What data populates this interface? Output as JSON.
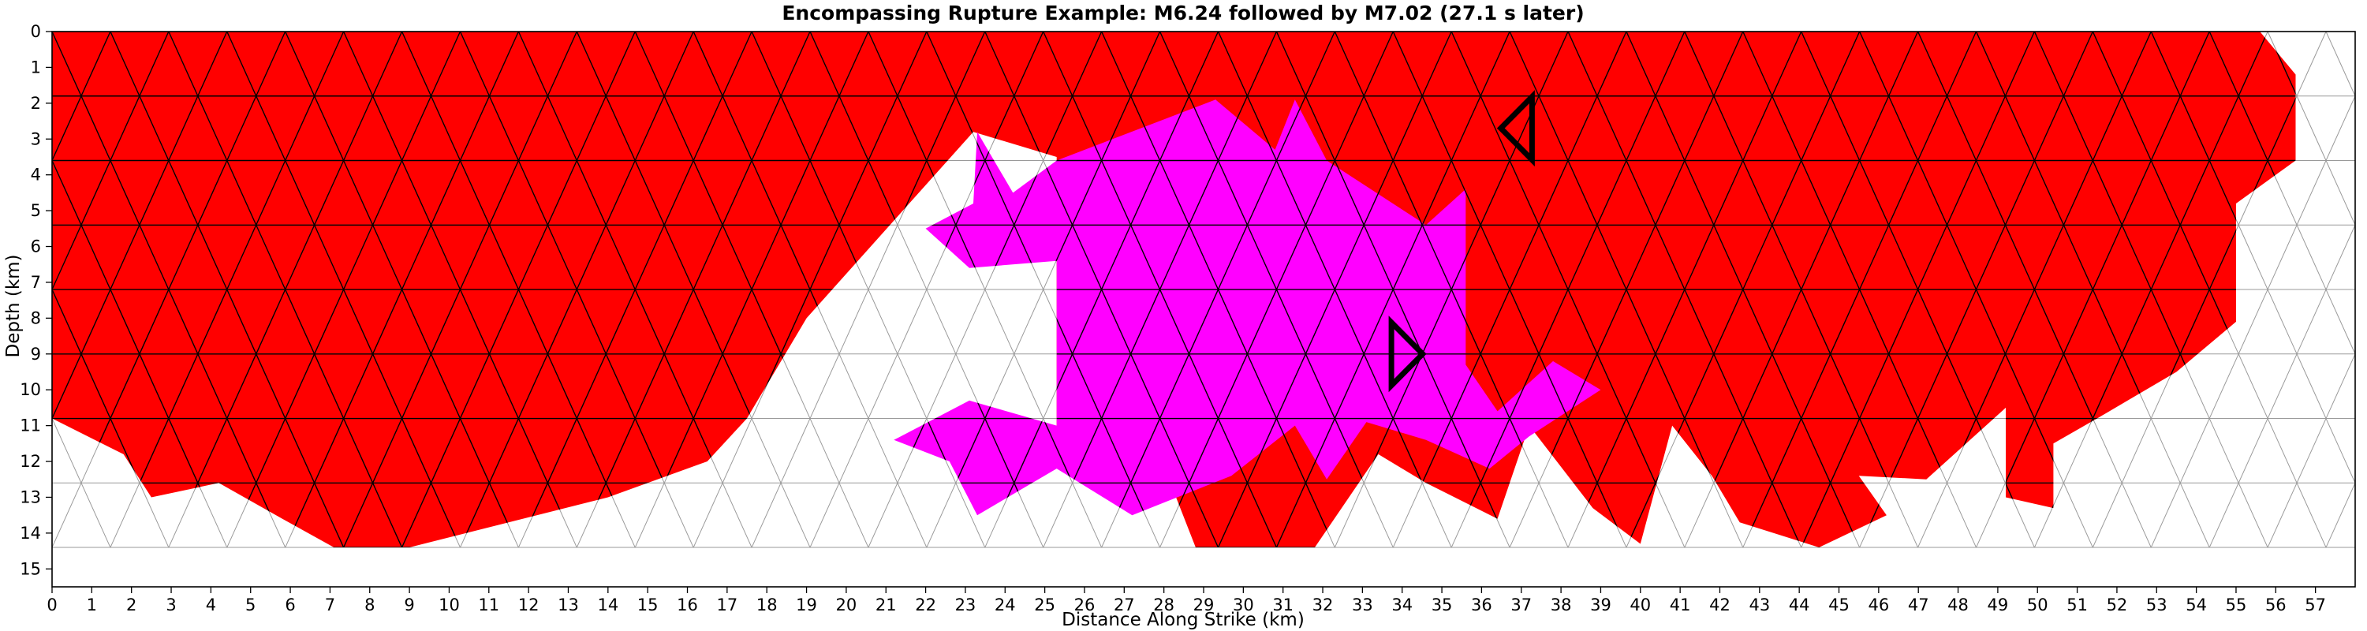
{
  "chart_data": {
    "type": "heatmap",
    "title": "Encompassing Rupture Example: M6.24 followed by M7.02 (27.1 s later)",
    "xlabel": "Distance Along Strike (km)",
    "ylabel": "Depth (km)",
    "xlim": [
      0,
      58
    ],
    "ylim": [
      15.5,
      0
    ],
    "x_ticks": [
      "0",
      "1",
      "2",
      "3",
      "4",
      "5",
      "6",
      "7",
      "8",
      "9",
      "10",
      "11",
      "12",
      "13",
      "14",
      "15",
      "16",
      "17",
      "18",
      "19",
      "20",
      "21",
      "22",
      "23",
      "24",
      "25",
      "26",
      "27",
      "28",
      "29",
      "30",
      "31",
      "32",
      "33",
      "34",
      "35",
      "36",
      "37",
      "38",
      "39",
      "40",
      "41",
      "42",
      "43",
      "44",
      "45",
      "46",
      "47",
      "48",
      "49",
      "50",
      "51",
      "52",
      "53",
      "54",
      "55",
      "56",
      "57"
    ],
    "y_ticks": [
      "0",
      "1",
      "2",
      "3",
      "4",
      "5",
      "6",
      "7",
      "8",
      "9",
      "10",
      "11",
      "12",
      "13",
      "14",
      "15"
    ],
    "mesh": {
      "columns": 40,
      "rows": 8,
      "row_height_km": 1.8,
      "max_depth_km": 14.4
    },
    "colors": {
      "first_rupture": "#ff0000",
      "second_rupture": "#ff00ff",
      "unruptured": "#ffffff",
      "element_edges_ruptured": "#000000",
      "element_edges_unruptured": "#9a9a9a",
      "hypocenter_markers": "#000000"
    },
    "series": [
      {
        "color": "#ff0000",
        "polygon": [
          [
            0,
            0
          ],
          [
            55.6,
            0
          ],
          [
            56.5,
            1.2
          ],
          [
            56.5,
            3.6
          ],
          [
            55,
            4.8
          ],
          [
            55,
            8.1
          ],
          [
            53.5,
            9.5
          ],
          [
            51.5,
            10.8
          ],
          [
            50.4,
            11.5
          ],
          [
            50.4,
            13.3
          ],
          [
            49.2,
            13
          ],
          [
            49.2,
            10.5
          ],
          [
            47.2,
            12.5
          ],
          [
            45.5,
            12.4
          ],
          [
            46.2,
            13.5
          ],
          [
            44.5,
            14.4
          ],
          [
            42.5,
            13.7
          ],
          [
            41.8,
            12.4
          ],
          [
            40.8,
            11
          ],
          [
            40,
            14.3
          ],
          [
            38.8,
            13.3
          ],
          [
            37.2,
            11
          ],
          [
            36.4,
            13.6
          ],
          [
            34.6,
            12.6
          ],
          [
            33.4,
            11.8
          ],
          [
            31.8,
            14.4
          ],
          [
            28.8,
            14.4
          ],
          [
            28.2,
            12.7
          ],
          [
            27.8,
            11.5
          ],
          [
            27.2,
            10.8
          ],
          [
            25.3,
            11
          ],
          [
            25.3,
            3.5
          ],
          [
            23.2,
            2.8
          ],
          [
            19,
            8
          ],
          [
            17.5,
            10.8
          ],
          [
            16.5,
            12
          ],
          [
            14,
            13
          ],
          [
            9,
            14.4
          ],
          [
            7.1,
            14.4
          ],
          [
            5.8,
            13.6
          ],
          [
            4.2,
            12.6
          ],
          [
            2.5,
            13
          ],
          [
            1.8,
            11.8
          ],
          [
            0,
            10.8
          ],
          [
            0,
            3.6
          ],
          [
            1.8,
            2.7
          ],
          [
            3.9,
            1.9
          ],
          [
            5.8,
            2.8
          ],
          [
            5.8,
            9.9
          ],
          [
            3.9,
            10.8
          ],
          [
            2,
            9
          ],
          [
            2,
            7.2
          ],
          [
            0,
            7.2
          ],
          [
            0,
            0
          ]
        ]
      },
      {
        "color": "#ff00ff",
        "polygon": [
          [
            23.3,
            2.8
          ],
          [
            24.2,
            4.5
          ],
          [
            25.3,
            3.6
          ],
          [
            29.3,
            1.9
          ],
          [
            30.8,
            3.3
          ],
          [
            31.3,
            1.9
          ],
          [
            32.1,
            3.6
          ],
          [
            34.6,
            5.4
          ],
          [
            35.6,
            4.4
          ],
          [
            35.6,
            8.3
          ],
          [
            35.6,
            9.3
          ],
          [
            36.4,
            10.6
          ],
          [
            37.8,
            9.2
          ],
          [
            39,
            10
          ],
          [
            37.2,
            11.3
          ],
          [
            36.2,
            12.2
          ],
          [
            34.6,
            11.4
          ],
          [
            33.1,
            10.9
          ],
          [
            32.1,
            12.5
          ],
          [
            31.3,
            11
          ],
          [
            29.7,
            12.4
          ],
          [
            27.2,
            13.5
          ],
          [
            25.3,
            12.2
          ],
          [
            23.3,
            13.5
          ],
          [
            22.6,
            12
          ],
          [
            21.2,
            11.4
          ],
          [
            23.1,
            10.3
          ],
          [
            25.3,
            11
          ],
          [
            25.3,
            6.4
          ],
          [
            23.1,
            6.6
          ],
          [
            22,
            5.5
          ],
          [
            23.2,
            4.8
          ],
          [
            23.3,
            2.8
          ]
        ]
      }
    ],
    "hypocenters": [
      {
        "name": "M6.24 hypocenter",
        "x": 37.2,
        "y": 2.7,
        "direction": "left"
      },
      {
        "name": "M7.02 hypocenter",
        "x": 33.8,
        "y": 9.0,
        "direction": "right"
      }
    ]
  }
}
